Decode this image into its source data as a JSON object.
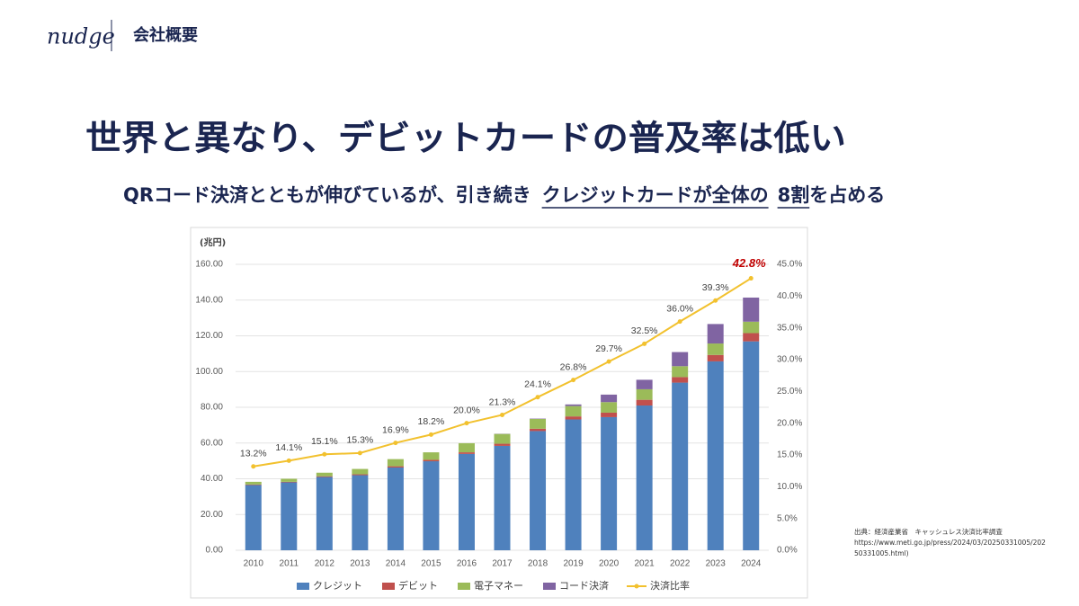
{
  "header": {
    "logo": "nudge",
    "section": "会社概要"
  },
  "title": "世界と異なり、デビットカードの普及率は低い",
  "subtitle": [
    {
      "text": "QRコード決済とともが伸びているが、引き続き",
      "underline": false
    },
    {
      "text": "クレジットカードが全体の",
      "underline": true
    },
    {
      "text": "8割",
      "underline": true
    },
    {
      "text": "を占める",
      "underline": false
    }
  ],
  "source": [
    "出典：経済産業省　キャッシュレス決済比率調査",
    "https://www.meti.go.jp/press/2024/03/20250331005/202",
    "50331005.html)"
  ],
  "chart_data": {
    "type": "bar",
    "stacked": true,
    "y_unit": "(兆円)",
    "categories": [
      "2010",
      "2011",
      "2012",
      "2013",
      "2014",
      "2015",
      "2016",
      "2017",
      "2018",
      "2019",
      "2020",
      "2021",
      "2022",
      "2023",
      "2024"
    ],
    "series": [
      {
        "name": "クレジット",
        "color": "#4f81bd",
        "values": [
          36.5,
          38.0,
          41.0,
          42.0,
          46.3,
          49.8,
          53.9,
          58.4,
          66.7,
          73.2,
          74.5,
          81.0,
          93.8,
          105.7,
          116.9
        ]
      },
      {
        "name": "デビット",
        "color": "#c0504d",
        "values": [
          0.3,
          0.3,
          0.4,
          0.5,
          0.7,
          0.8,
          0.9,
          1.2,
          1.3,
          1.7,
          2.5,
          3.2,
          3.1,
          3.6,
          4.6
        ]
      },
      {
        "name": "電子マネー",
        "color": "#9bbb59",
        "values": [
          1.5,
          1.7,
          2.0,
          3.0,
          4.0,
          4.2,
          5.1,
          5.5,
          5.5,
          5.8,
          5.9,
          5.9,
          6.1,
          6.4,
          6.4
        ]
      },
      {
        "name": "コード決済",
        "color": "#8064a2",
        "values": [
          0,
          0,
          0,
          0,
          0,
          0,
          0,
          0.1,
          0.2,
          0.9,
          4.2,
          5.3,
          7.9,
          10.9,
          13.5
        ]
      },
      {
        "name": "決済比率",
        "type": "line",
        "axis": "y2",
        "color": "#f2c12e",
        "highlight_color": "#c00000",
        "values": [
          13.2,
          14.1,
          15.1,
          15.3,
          16.9,
          18.2,
          20.0,
          21.3,
          24.1,
          26.8,
          29.7,
          32.5,
          36.0,
          39.3,
          42.8
        ],
        "value_labels": [
          "13.2%",
          "14.1%",
          "15.1%",
          "15.3%",
          "16.9%",
          "18.2%",
          "20.0%",
          "21.3%",
          "24.1%",
          "26.8%",
          "29.7%",
          "32.5%",
          "36.0%",
          "39.3%",
          "42.8%"
        ]
      }
    ],
    "ylim": [
      0,
      160
    ],
    "yticks": [
      {
        "value": 0,
        "label": "0.00"
      },
      {
        "value": 20,
        "label": "20.00"
      },
      {
        "value": 40,
        "label": "40.00"
      },
      {
        "value": 60,
        "label": "60.00"
      },
      {
        "value": 80,
        "label": "80.00"
      },
      {
        "value": 100,
        "label": "100.00"
      },
      {
        "value": 120,
        "label": "120.00"
      },
      {
        "value": 140,
        "label": "140.00"
      },
      {
        "value": 160,
        "label": "160.00"
      }
    ],
    "y2lim": [
      0,
      45
    ],
    "y2ticks": [
      {
        "value": 0,
        "label": "0.0%"
      },
      {
        "value": 5,
        "label": "5.0%"
      },
      {
        "value": 10,
        "label": "10.0%"
      },
      {
        "value": 15,
        "label": "15.0%"
      },
      {
        "value": 20,
        "label": "20.0%"
      },
      {
        "value": 25,
        "label": "25.0%"
      },
      {
        "value": 30,
        "label": "30.0%"
      },
      {
        "value": 35,
        "label": "35.0%"
      },
      {
        "value": 40,
        "label": "40.0%"
      },
      {
        "value": 45,
        "label": "45.0%"
      }
    ],
    "grid": true,
    "legend": "bottom"
  }
}
